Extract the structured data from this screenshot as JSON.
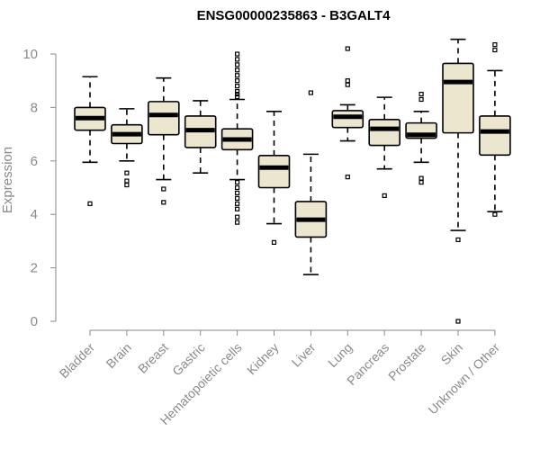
{
  "chart_data": {
    "type": "boxplot",
    "title": "ENSG00000235863 - B3GALT4",
    "xlabel": "",
    "ylabel": "Expression",
    "ylim": [
      0,
      10
    ],
    "yticks": [
      0,
      2,
      4,
      6,
      8,
      10
    ],
    "box_color": "#ede6cf",
    "categories": [
      "Bladder",
      "Brain",
      "Breast",
      "Gastric",
      "Hematopoietic cells",
      "Kidney",
      "Liver",
      "Lung",
      "Pancreas",
      "Prostate",
      "Skin",
      "Unknown / Other"
    ],
    "series": [
      {
        "name": "Bladder",
        "whisker_low": 5.95,
        "q1": 7.15,
        "median": 7.6,
        "q3": 8.0,
        "whisker_high": 9.15,
        "outliers": [
          4.4
        ]
      },
      {
        "name": "Brain",
        "whisker_low": 6.0,
        "q1": 6.65,
        "median": 7.0,
        "q3": 7.35,
        "whisker_high": 7.95,
        "outliers": [
          5.55,
          5.25,
          5.1
        ]
      },
      {
        "name": "Breast",
        "whisker_low": 5.3,
        "q1": 6.98,
        "median": 7.72,
        "q3": 8.22,
        "whisker_high": 9.1,
        "outliers": [
          4.95,
          4.45
        ]
      },
      {
        "name": "Gastric",
        "whisker_low": 5.55,
        "q1": 6.5,
        "median": 7.15,
        "q3": 7.68,
        "whisker_high": 8.25,
        "outliers": []
      },
      {
        "name": "Hematopoietic cells",
        "whisker_low": 5.3,
        "q1": 6.42,
        "median": 6.8,
        "q3": 7.2,
        "whisker_high": 8.3,
        "outliers": [
          10.0,
          9.8,
          9.6,
          9.4,
          9.2,
          9.0,
          8.8,
          8.6,
          8.5,
          8.4,
          5.2,
          5.0,
          4.8,
          4.6,
          4.4,
          4.2,
          3.9,
          3.7
        ]
      },
      {
        "name": "Kidney",
        "whisker_low": 3.65,
        "q1": 5.0,
        "median": 5.75,
        "q3": 6.2,
        "whisker_high": 7.85,
        "outliers": [
          2.95
        ]
      },
      {
        "name": "Liver",
        "whisker_low": 1.75,
        "q1": 3.15,
        "median": 3.8,
        "q3": 4.48,
        "whisker_high": 6.25,
        "outliers": [
          8.55
        ]
      },
      {
        "name": "Lung",
        "whisker_low": 6.75,
        "q1": 7.25,
        "median": 7.65,
        "q3": 7.88,
        "whisker_high": 8.1,
        "outliers": [
          10.2,
          9.0,
          8.85,
          5.4
        ]
      },
      {
        "name": "Pancreas",
        "whisker_low": 5.7,
        "q1": 6.58,
        "median": 7.2,
        "q3": 7.55,
        "whisker_high": 8.38,
        "outliers": [
          4.7
        ]
      },
      {
        "name": "Prostate",
        "whisker_low": 5.95,
        "q1": 6.85,
        "median": 6.98,
        "q3": 7.42,
        "whisker_high": 7.85,
        "outliers": [
          8.5,
          8.3,
          5.35,
          5.2
        ]
      },
      {
        "name": "Skin",
        "whisker_low": 3.4,
        "q1": 7.05,
        "median": 8.95,
        "q3": 9.65,
        "whisker_high": 10.55,
        "outliers": [
          3.05,
          0.0
        ]
      },
      {
        "name": "Unknown / Other",
        "whisker_low": 4.1,
        "q1": 6.22,
        "median": 7.1,
        "q3": 7.68,
        "whisker_high": 9.38,
        "outliers": [
          10.35,
          10.15,
          4.0
        ]
      }
    ]
  }
}
